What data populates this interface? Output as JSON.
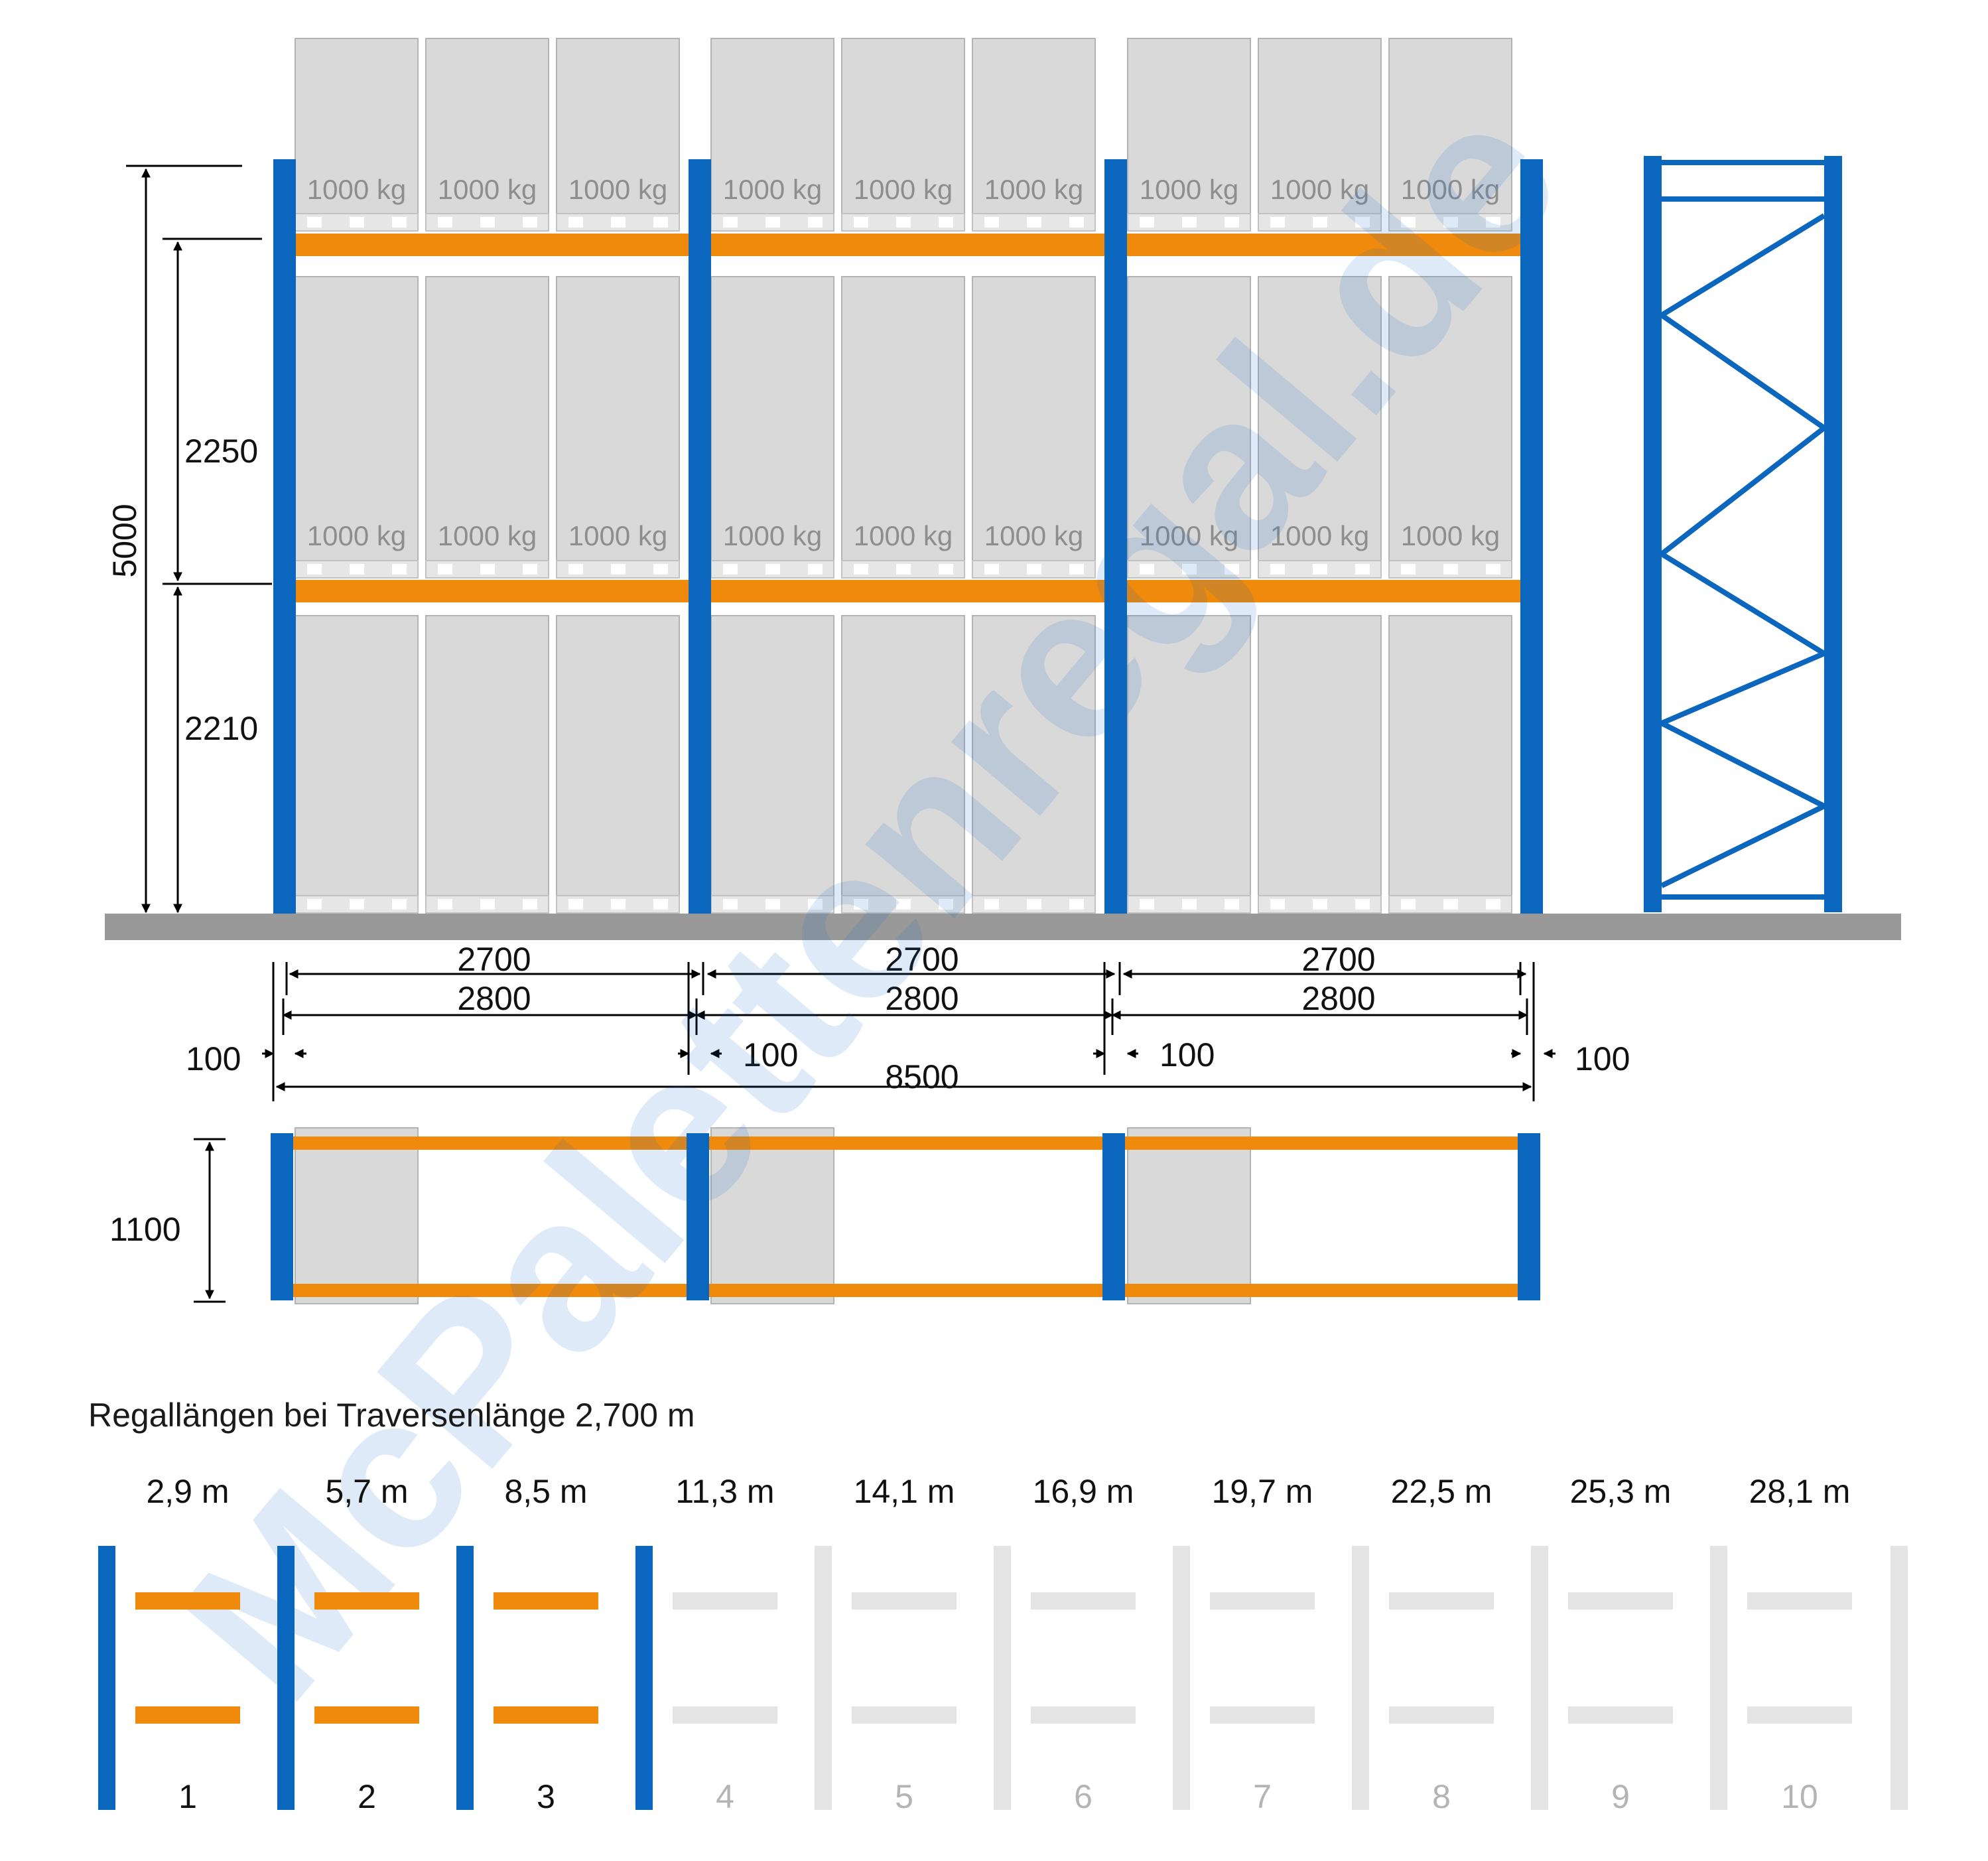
{
  "diagram": {
    "load_label": "1000 kg",
    "dimensions": {
      "total_height": "5000",
      "level_2_height": "2250",
      "level_1_height": "2210",
      "depth": "1100",
      "beam_length": "2700",
      "bay_length": "2800",
      "end_spacing": "100",
      "total_length": "8500"
    },
    "watermark": "McPalettenregal.de",
    "caption": "Regallängen bei Traversenlänge 2,700 m",
    "bays": [
      {
        "number": "1",
        "length": "2,9 m",
        "active": true
      },
      {
        "number": "2",
        "length": "5,7 m",
        "active": true
      },
      {
        "number": "3",
        "length": "8,5 m",
        "active": true
      },
      {
        "number": "4",
        "length": "11,3 m",
        "active": false
      },
      {
        "number": "5",
        "length": "14,1 m",
        "active": false
      },
      {
        "number": "6",
        "length": "16,9 m",
        "active": false
      },
      {
        "number": "7",
        "length": "19,7 m",
        "active": false
      },
      {
        "number": "8",
        "length": "22,5 m",
        "active": false
      },
      {
        "number": "9",
        "length": "25,3 m",
        "active": false
      },
      {
        "number": "10",
        "length": "28,1 m",
        "active": false
      }
    ],
    "colors": {
      "upright": "#0b66bd",
      "beam": "#f08a0c",
      "pallet": "#d9d9d9",
      "floor": "#999999",
      "inactive": "#e4e4e4"
    }
  }
}
